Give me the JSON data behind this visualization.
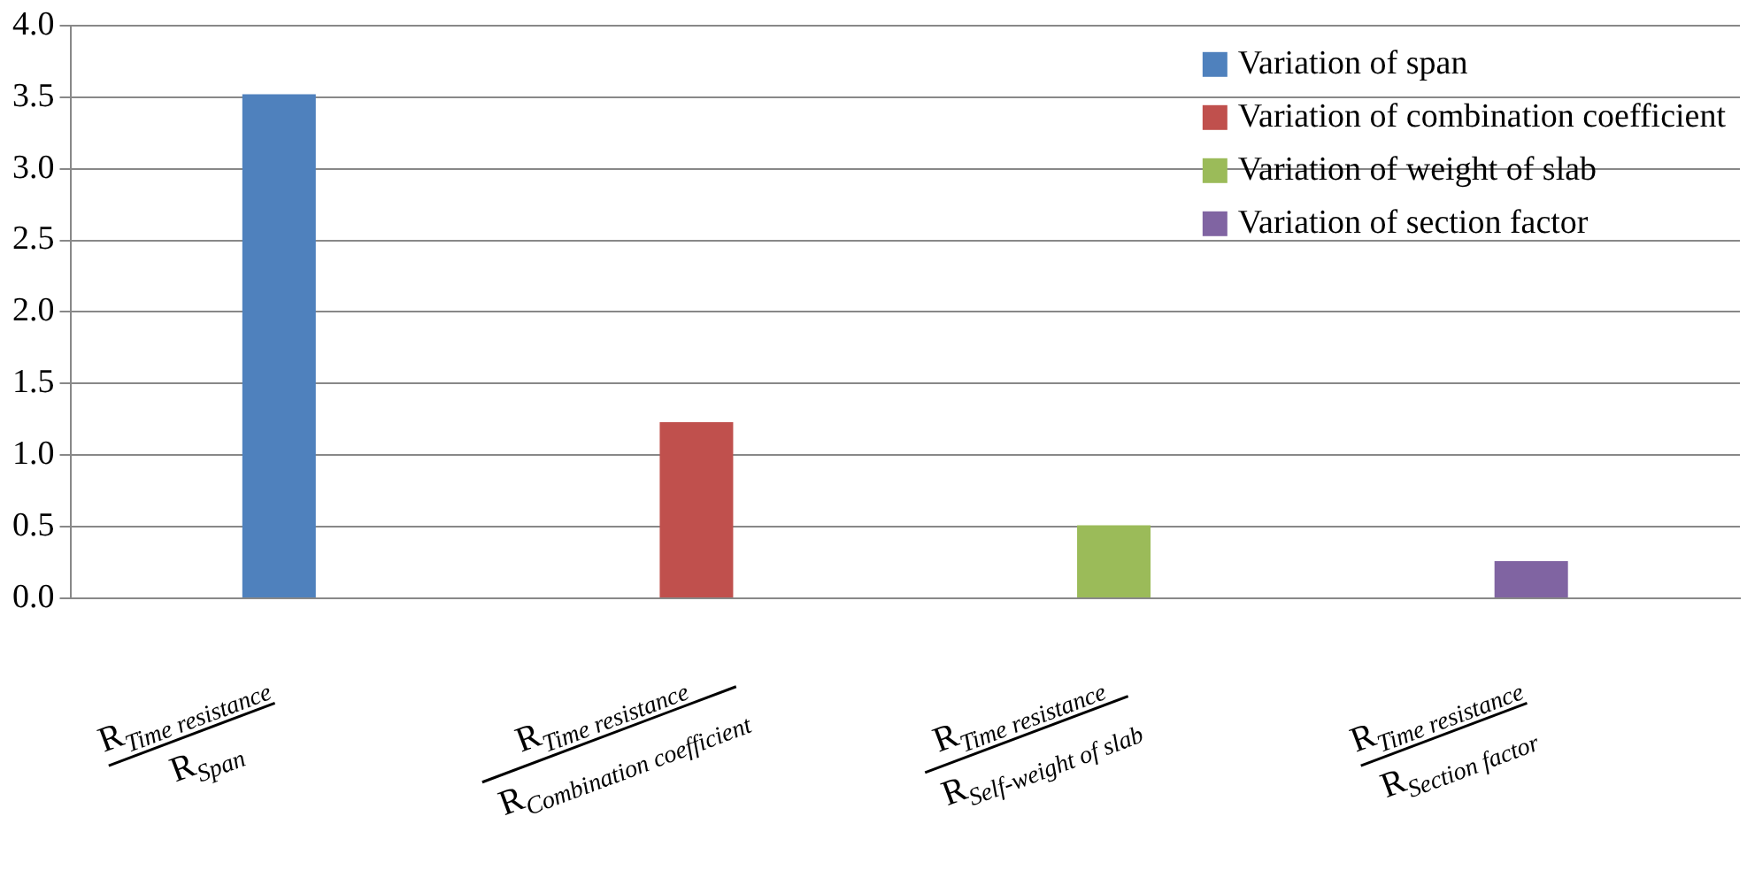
{
  "chart_data": {
    "type": "bar",
    "categories": [
      "R$_{Time resistance}$ R$_{Span}$",
      "R$_{Time resistance}$ R$_{Combination coefficient}$",
      "R$_{Time resistance}$ R$_{Self-weight of slab}$",
      "R$_{Time resistance}$ R$_{Section factor}$"
    ],
    "series": [
      {
        "name": "Variation of span",
        "color": "#4f81bd",
        "values": [
          3.52,
          null,
          null,
          null
        ]
      },
      {
        "name": "Variation of combination coefficient",
        "color": "#c0504d",
        "values": [
          null,
          1.23,
          null,
          null
        ]
      },
      {
        "name": "Variation of weight of slab",
        "color": "#9bbb59",
        "values": [
          null,
          null,
          0.51,
          null
        ]
      },
      {
        "name": "Variation of section factor",
        "color": "#8064a2",
        "values": [
          null,
          null,
          null,
          0.26
        ]
      }
    ],
    "ylim": [
      0,
      4
    ],
    "yticks": [
      {
        "value": 0,
        "label": "0.0"
      },
      {
        "value": 0.5,
        "label": "0.5"
      },
      {
        "value": 1,
        "label": "1.0"
      },
      {
        "value": 1.5,
        "label": "1.5"
      },
      {
        "value": 2,
        "label": "2.0"
      },
      {
        "value": 2.5,
        "label": "2.5"
      },
      {
        "value": 3,
        "label": "3.0"
      },
      {
        "value": 3.5,
        "label": "3.5"
      },
      {
        "value": 4,
        "label": "4.0"
      }
    ],
    "grid": "y",
    "legend": "top right"
  }
}
